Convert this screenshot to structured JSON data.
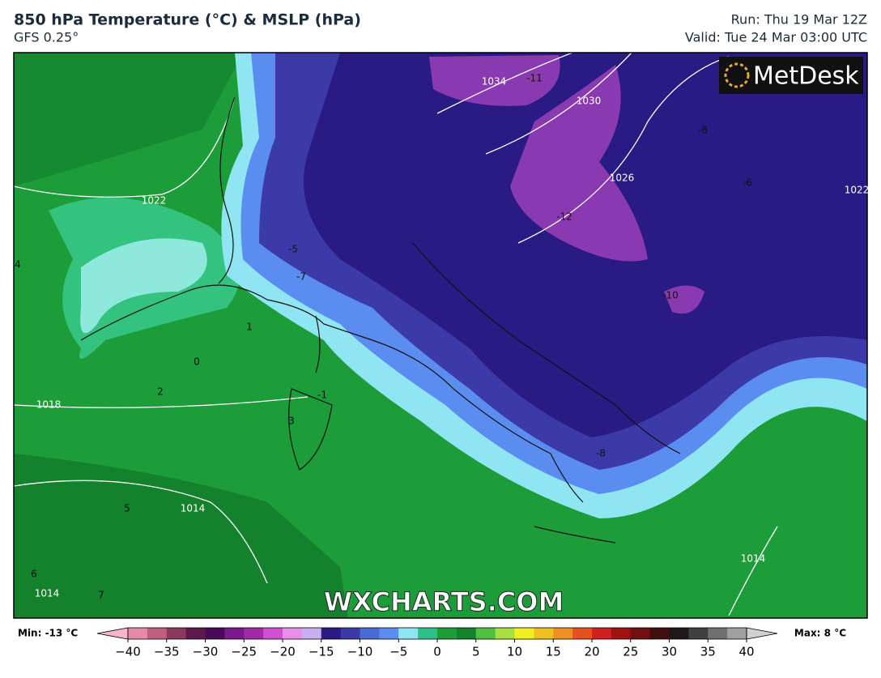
{
  "header": {
    "title": "850 hPa Temperature (°C) & MSLP (hPa)",
    "subtitle": "GFS 0.25°",
    "run": "Run: Thu 19 Mar 12Z",
    "valid": "Valid: Tue 24 Mar 03:00 UTC"
  },
  "map": {
    "logo": "MetDesk",
    "watermark": "WXCHARTS.COM",
    "isobar_labels": [
      "1034",
      "1030",
      "1026",
      "1022",
      "1022",
      "1018",
      "1014",
      "1014",
      "1014"
    ],
    "temperature_labels": [
      "-11",
      "-12",
      "-8",
      "-6",
      "-5",
      "-7",
      "-1",
      "0",
      "1",
      "2",
      "3",
      "4",
      "5",
      "6",
      "7",
      "-8",
      "-10"
    ]
  },
  "colorbar": {
    "min_label": "Min: -13 °C",
    "max_label": "Max: 8 °C",
    "lim": [
      -40,
      40
    ],
    "ticks": [
      {
        "value": -40,
        "label": "−40"
      },
      {
        "value": -35,
        "label": "−35"
      },
      {
        "value": -30,
        "label": "−30"
      },
      {
        "value": -25,
        "label": "−25"
      },
      {
        "value": -20,
        "label": "−20"
      },
      {
        "value": -15,
        "label": "−15"
      },
      {
        "value": -10,
        "label": "−10"
      },
      {
        "value": -5,
        "label": "−5"
      },
      0,
      5,
      10,
      15,
      20,
      25,
      30,
      35,
      40
    ]
  }
}
